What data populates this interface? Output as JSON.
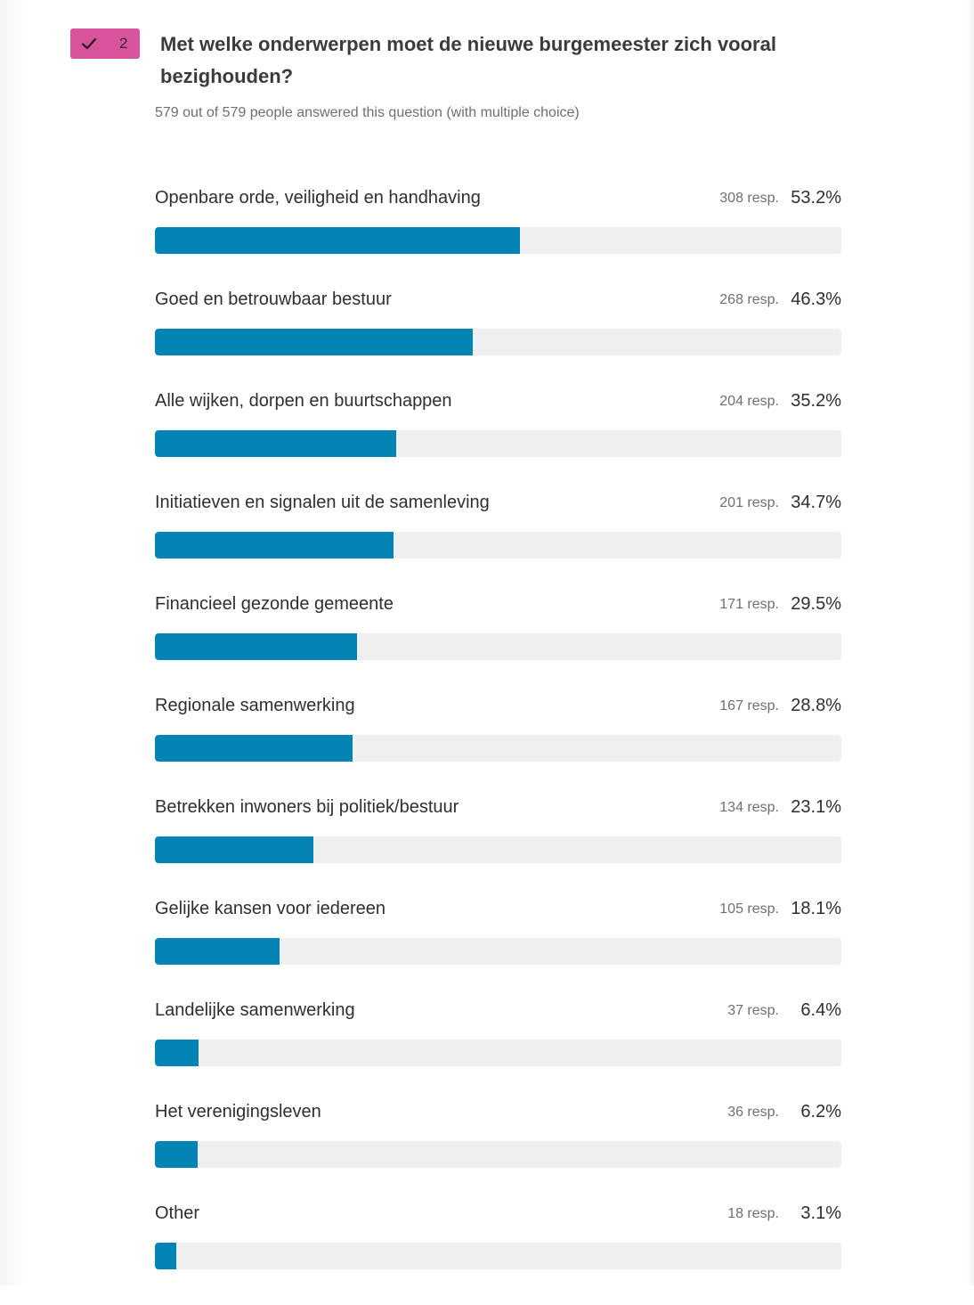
{
  "question": {
    "number": "2",
    "title": "Met welke onderwerpen moet de nieuwe burgemeester zich vooral bezighouden?",
    "subtitle": "579 out of 579 people answered this question (with multiple choice)"
  },
  "colors": {
    "badge": "#d9539c",
    "bar": "#0484b4",
    "track": "#efefef"
  },
  "options": [
    {
      "label": "Openbare orde, veiligheid en handhaving",
      "resp": "308 resp.",
      "pct": "53.2%",
      "fraction": 0.532
    },
    {
      "label": "Goed en betrouwbaar bestuur",
      "resp": "268 resp.",
      "pct": "46.3%",
      "fraction": 0.463
    },
    {
      "label": "Alle wijken, dorpen en buurtschappen",
      "resp": "204 resp.",
      "pct": "35.2%",
      "fraction": 0.352
    },
    {
      "label": "Initiatieven en signalen uit de samenleving",
      "resp": "201 resp.",
      "pct": "34.7%",
      "fraction": 0.347
    },
    {
      "label": "Financieel gezonde gemeente",
      "resp": "171 resp.",
      "pct": "29.5%",
      "fraction": 0.295
    },
    {
      "label": "Regionale samenwerking",
      "resp": "167 resp.",
      "pct": "28.8%",
      "fraction": 0.288
    },
    {
      "label": "Betrekken inwoners bij politiek/bestuur",
      "resp": "134 resp.",
      "pct": "23.1%",
      "fraction": 0.231
    },
    {
      "label": "Gelijke kansen voor iedereen",
      "resp": "105 resp.",
      "pct": "18.1%",
      "fraction": 0.181
    },
    {
      "label": "Landelijke samenwerking",
      "resp": "37 resp.",
      "pct": "6.4%",
      "fraction": 0.064
    },
    {
      "label": "Het verenigingsleven",
      "resp": "36 resp.",
      "pct": "6.2%",
      "fraction": 0.062
    },
    {
      "label": "Other",
      "resp": "18 resp.",
      "pct": "3.1%",
      "fraction": 0.031
    }
  ]
}
